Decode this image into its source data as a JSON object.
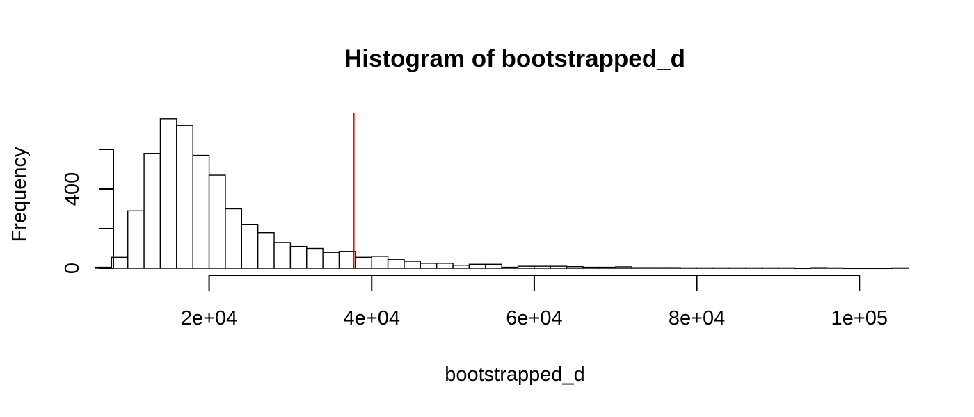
{
  "chart_data": {
    "type": "bar",
    "title": "Histogram of bootstrapped_d",
    "xlabel": "bootstrapped_d",
    "ylabel": "Frequency",
    "bin_width": 2000,
    "x_start": 6000,
    "values": [
      5,
      55,
      290,
      580,
      755,
      720,
      570,
      470,
      300,
      220,
      180,
      130,
      110,
      100,
      80,
      85,
      55,
      60,
      45,
      35,
      25,
      25,
      15,
      20,
      20,
      5,
      10,
      10,
      10,
      8,
      5,
      5,
      7,
      3,
      3,
      3,
      2,
      2,
      2,
      2,
      2,
      2,
      2,
      1,
      3,
      2,
      1,
      1,
      1,
      2
    ],
    "x_ticks": [
      20000,
      40000,
      60000,
      80000,
      100000
    ],
    "x_tick_labels": [
      "2e+04",
      "4e+04",
      "6e+04",
      "8e+04",
      "1e+05"
    ],
    "y_ticks": [
      0,
      200,
      400,
      600
    ],
    "y_tick_labels": [
      "0",
      "",
      "400",
      ""
    ],
    "xlim": [
      6000,
      104000
    ],
    "ylim": [
      0,
      600
    ],
    "vline": {
      "x": 37800,
      "color": "#ff0000"
    },
    "grid": false
  }
}
